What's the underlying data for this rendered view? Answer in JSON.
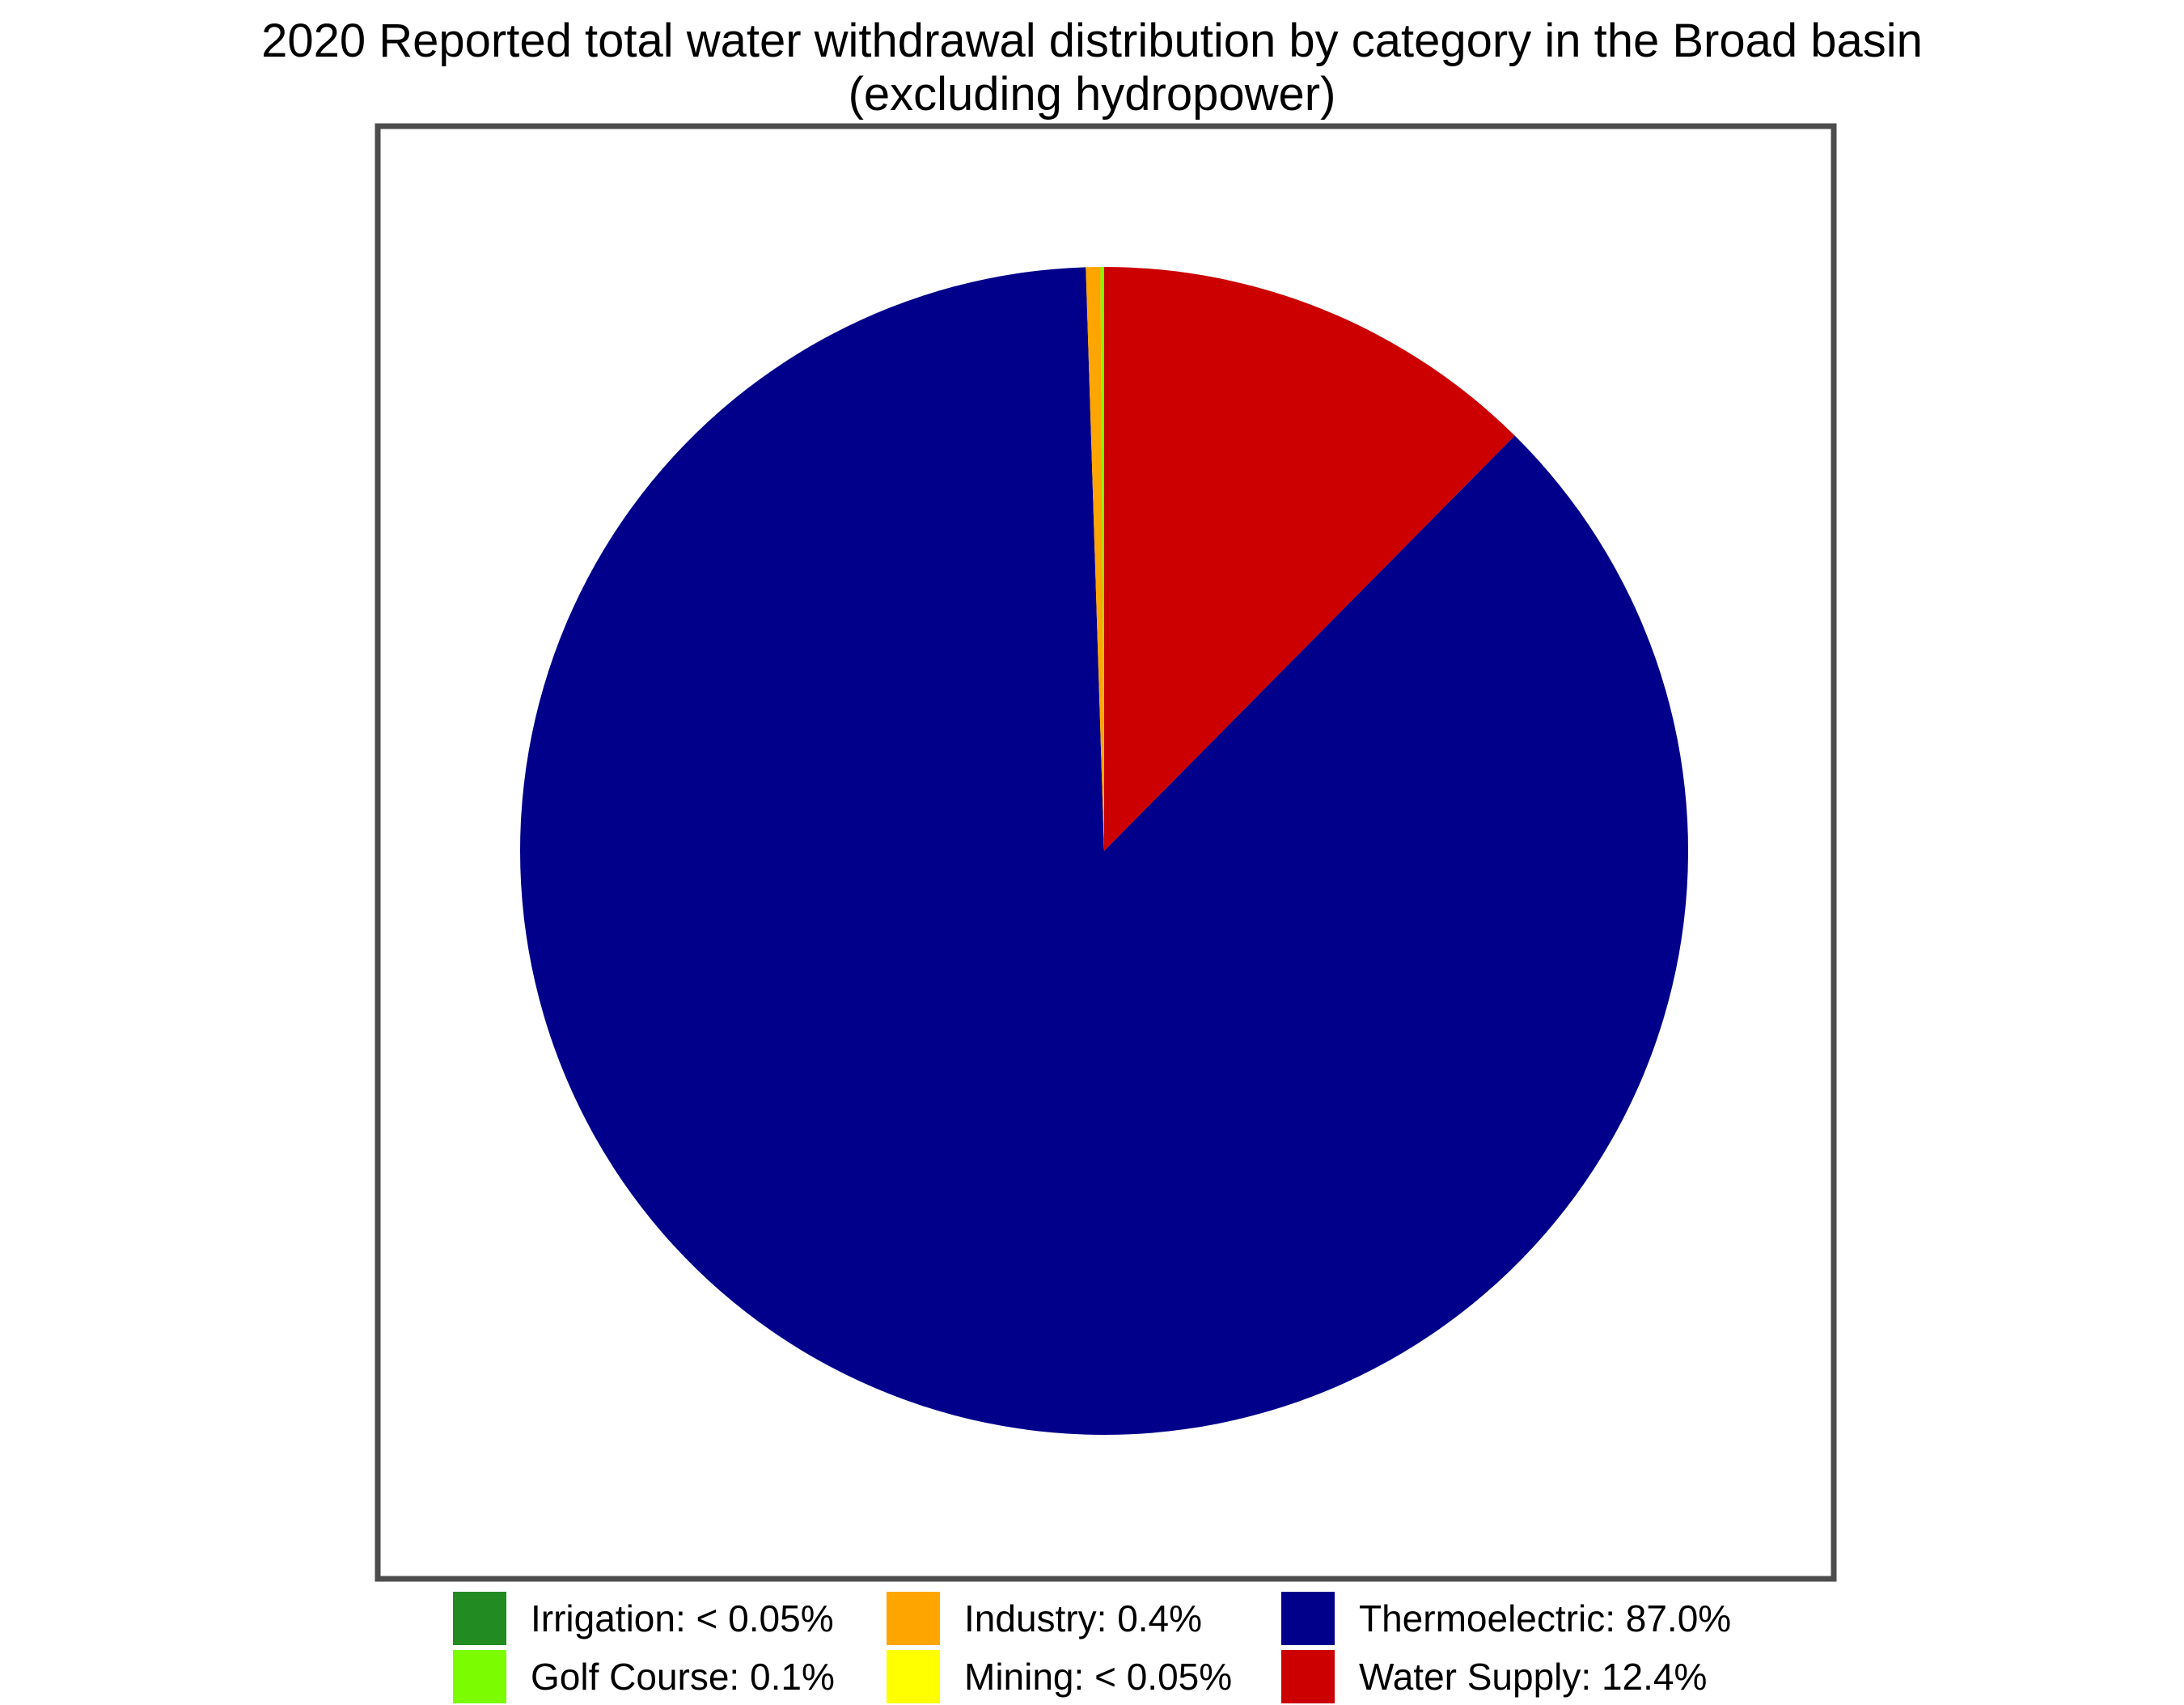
{
  "chart_data": {
    "type": "pie",
    "title": "2020 Reported total water withdrawal distribution by category in the Broad basin",
    "subtitle": "(excluding hydropower)",
    "legend_position": "bottom",
    "start_angle": "top",
    "direction": "clockwise",
    "slices": [
      {
        "label": "Water Supply: 12.4%",
        "value": 12.4,
        "color": "#CC0000"
      },
      {
        "label": "Thermoelectric: 87.0%",
        "value": 87.0,
        "color": "#00008B"
      },
      {
        "label": "Mining: < 0.05%",
        "value": 0.0,
        "color": "#FFFF00"
      },
      {
        "label": "Industry: 0.4%",
        "value": 0.4,
        "color": "#FFA500"
      },
      {
        "label": "Golf Course: 0.1%",
        "value": 0.1,
        "color": "#7CFC00"
      },
      {
        "label": "Irrigation: < 0.05%",
        "value": 0.0,
        "color": "#228B22"
      }
    ],
    "legend": [
      {
        "label": "Irrigation: < 0.05%",
        "color": "#228B22"
      },
      {
        "label": "Golf Course: 0.1%",
        "color": "#7CFC00"
      },
      {
        "label": "Industry: 0.4%",
        "color": "#FFA500"
      },
      {
        "label": "Mining: < 0.05%",
        "color": "#FFFF00"
      },
      {
        "label": "Thermoelectric: 87.0%",
        "color": "#00008B"
      },
      {
        "label": "Water Supply: 12.4%",
        "color": "#CC0000"
      }
    ]
  }
}
